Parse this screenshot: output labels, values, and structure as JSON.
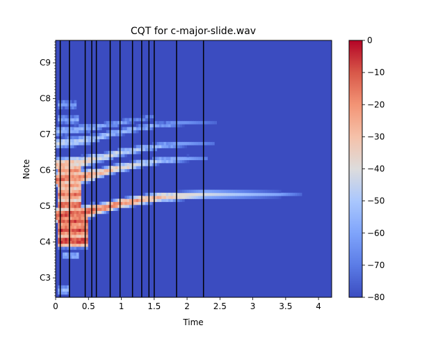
{
  "chart_data": {
    "type": "heatmap",
    "title": "CQT for c-major-slide.wav",
    "xlabel": "Time",
    "ylabel": "Note",
    "xlim": [
      0,
      4.2
    ],
    "x_ticks": [
      {
        "value": 0,
        "label": "0"
      },
      {
        "value": 0.5,
        "label": "0.5"
      },
      {
        "value": 1,
        "label": "1"
      },
      {
        "value": 1.5,
        "label": "1.5"
      },
      {
        "value": 2,
        "label": "2"
      },
      {
        "value": 2.5,
        "label": "2.5"
      },
      {
        "value": 3,
        "label": "3"
      },
      {
        "value": 3.5,
        "label": "3.5"
      },
      {
        "value": 4,
        "label": "4"
      }
    ],
    "ylim_midi": [
      41.5,
      127.5
    ],
    "y_ticks": [
      {
        "midi": 48,
        "label": "C3"
      },
      {
        "midi": 60,
        "label": "C4"
      },
      {
        "midi": 72,
        "label": "C5"
      },
      {
        "midi": 84,
        "label": "C6"
      },
      {
        "midi": 96,
        "label": "C7"
      },
      {
        "midi": 108,
        "label": "C8"
      },
      {
        "midi": 120,
        "label": "C9"
      }
    ],
    "onset_lines": [
      0.07,
      0.21,
      0.45,
      0.55,
      0.62,
      0.83,
      0.98,
      1.17,
      1.31,
      1.42,
      1.5,
      1.84,
      2.25
    ],
    "colorbar": {
      "cmap": "coolwarm",
      "range_db": [
        -80,
        0
      ],
      "ticks": [
        {
          "value": 0,
          "label": "0"
        },
        {
          "value": -10,
          "label": "−10"
        },
        {
          "value": -20,
          "label": "−20"
        },
        {
          "value": -30,
          "label": "−30"
        },
        {
          "value": -40,
          "label": "−40"
        },
        {
          "value": -50,
          "label": "−50"
        },
        {
          "value": -60,
          "label": "−60"
        },
        {
          "value": -70,
          "label": "−70"
        },
        {
          "value": -80,
          "label": "−80"
        }
      ]
    },
    "background_db": -80,
    "partial_tracks": [
      {
        "t": [
          0.0,
          0.45,
          1.0,
          1.55,
          2.3,
          3.4,
          3.75
        ],
        "midi": [
          69,
          70,
          73,
          75,
          76,
          76,
          76
        ],
        "db": [
          -8,
          -12,
          -18,
          -28,
          -42,
          -60,
          -75
        ]
      },
      {
        "t": [
          0.0,
          0.45,
          1.0,
          1.5,
          2.0,
          2.3
        ],
        "midi": [
          81,
          82,
          85,
          87,
          88,
          88
        ],
        "db": [
          -12,
          -20,
          -35,
          -50,
          -60,
          -70
        ]
      },
      {
        "t": [
          0.0,
          0.45,
          1.0,
          1.5,
          2.0,
          2.4
        ],
        "midi": [
          86,
          87,
          90,
          92,
          93,
          93
        ],
        "db": [
          -25,
          -35,
          -45,
          -55,
          -62,
          -72
        ]
      },
      {
        "t": [
          0.0,
          0.45,
          1.0,
          1.5,
          2.0,
          2.45
        ],
        "midi": [
          93,
          94,
          97,
          99,
          100,
          100
        ],
        "db": [
          -45,
          -50,
          -55,
          -60,
          -65,
          -75
        ]
      },
      {
        "t": [
          0.0,
          0.45,
          1.0,
          1.5
        ],
        "midi": [
          97,
          98,
          100,
          102
        ],
        "db": [
          -55,
          -58,
          -62,
          -70
        ]
      }
    ],
    "note_blobs": [
      {
        "t0": 0.05,
        "t1": 0.5,
        "midi": 60.5,
        "db": -7
      },
      {
        "t0": 0.05,
        "t1": 0.5,
        "midi": 64,
        "db": -9
      },
      {
        "t0": 0.05,
        "t1": 0.5,
        "midi": 67,
        "db": -10
      },
      {
        "t0": 0.05,
        "t1": 0.4,
        "midi": 72.5,
        "db": -12
      },
      {
        "t0": 0.05,
        "t1": 0.4,
        "midi": 76,
        "db": -15
      },
      {
        "t0": 0.05,
        "t1": 0.4,
        "midi": 79,
        "db": -22
      },
      {
        "t0": 0.05,
        "t1": 0.4,
        "midi": 84,
        "db": -20
      },
      {
        "t0": 0.1,
        "t1": 0.35,
        "midi": 55.5,
        "db": -58
      },
      {
        "t0": 0.05,
        "t1": 0.2,
        "midi": 44,
        "db": -55
      },
      {
        "t0": 0.05,
        "t1": 0.3,
        "midi": 106,
        "db": -62
      },
      {
        "t0": 0.05,
        "t1": 0.35,
        "midi": 101,
        "db": -60
      }
    ]
  }
}
